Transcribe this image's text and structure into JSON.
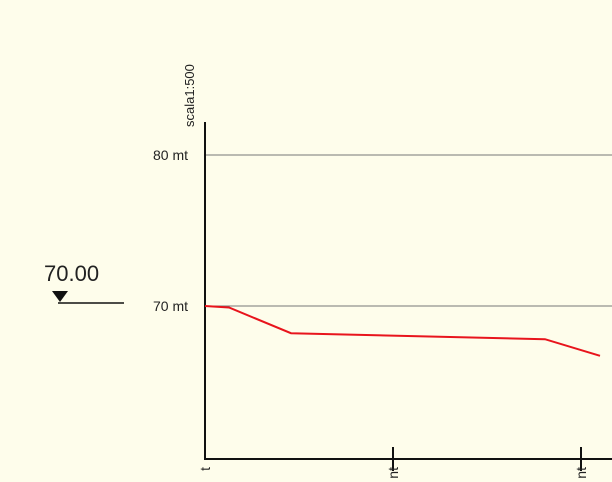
{
  "chart_data": {
    "type": "line",
    "scale_label": "scala1:500",
    "y_axis": {
      "ticks": [
        {
          "value": 80,
          "label": "80 mt"
        },
        {
          "value": 70,
          "label": "70 mt"
        }
      ],
      "grid": true
    },
    "x_axis": {
      "tick_labels": [
        "t",
        "nt",
        "nt"
      ]
    },
    "water_level": {
      "value": 70,
      "label": "70.00"
    },
    "series": [
      {
        "color": "#e8141c",
        "points": [
          {
            "x": 0,
            "y": 70.0
          },
          {
            "x": 24,
            "y": 69.9
          },
          {
            "x": 86,
            "y": 68.2
          },
          {
            "x": 340,
            "y": 67.8
          },
          {
            "x": 395,
            "y": 66.7
          }
        ]
      }
    ]
  },
  "colors": {
    "background": "#fefdeb",
    "axis": "#111111",
    "grid": "#777777",
    "profile_line": "#e8141c"
  }
}
